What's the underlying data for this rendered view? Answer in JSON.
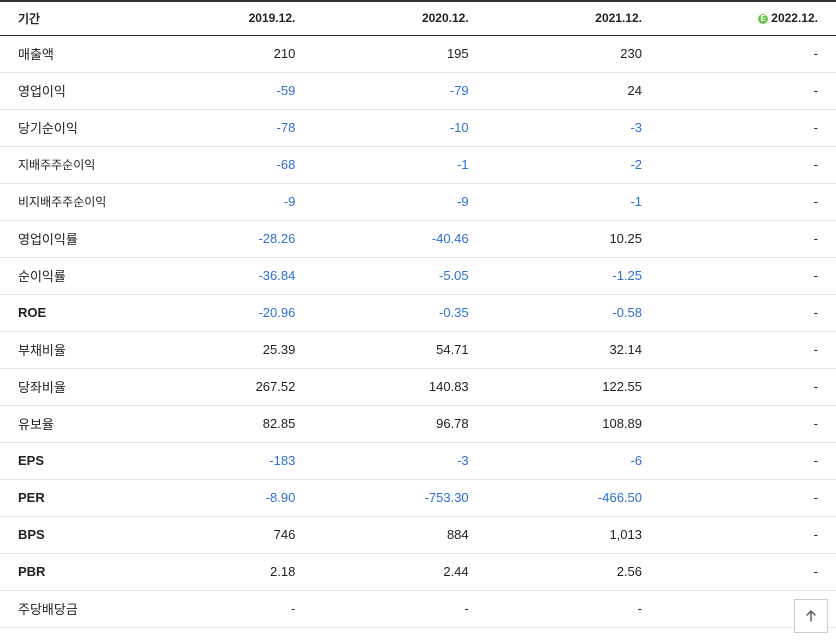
{
  "colors": {
    "negative": "#2f6fd6",
    "text": "#222222",
    "row_border": "#e6e6e6",
    "head_border": "#333333",
    "estimate_badge": "#6fc24a"
  },
  "header": {
    "period_label": "기간",
    "cols": [
      "2019.12.",
      "2020.12.",
      "2021.12.",
      "2022.12."
    ],
    "estimate_col_index": 3,
    "estimate_badge_text": "E"
  },
  "rows": [
    {
      "label": "매출액",
      "sub": false,
      "bold": false,
      "cells": [
        "210",
        "195",
        "230",
        "-"
      ],
      "neg": [
        false,
        false,
        false,
        false
      ]
    },
    {
      "label": "영업이익",
      "sub": false,
      "bold": false,
      "cells": [
        "-59",
        "-79",
        "24",
        "-"
      ],
      "neg": [
        true,
        true,
        false,
        false
      ]
    },
    {
      "label": "당기순이익",
      "sub": false,
      "bold": false,
      "cells": [
        "-78",
        "-10",
        "-3",
        "-"
      ],
      "neg": [
        true,
        true,
        true,
        false
      ]
    },
    {
      "label": "지배주주순이익",
      "sub": true,
      "bold": false,
      "cells": [
        "-68",
        "-1",
        "-2",
        "-"
      ],
      "neg": [
        true,
        true,
        true,
        false
      ]
    },
    {
      "label": "비지배주주순이익",
      "sub": true,
      "bold": false,
      "cells": [
        "-9",
        "-9",
        "-1",
        "-"
      ],
      "neg": [
        true,
        true,
        true,
        false
      ]
    },
    {
      "label": "영업이익률",
      "sub": false,
      "bold": false,
      "cells": [
        "-28.26",
        "-40.46",
        "10.25",
        "-"
      ],
      "neg": [
        true,
        true,
        false,
        false
      ]
    },
    {
      "label": "순이익률",
      "sub": false,
      "bold": false,
      "cells": [
        "-36.84",
        "-5.05",
        "-1.25",
        "-"
      ],
      "neg": [
        true,
        true,
        true,
        false
      ]
    },
    {
      "label": "ROE",
      "sub": false,
      "bold": true,
      "cells": [
        "-20.96",
        "-0.35",
        "-0.58",
        "-"
      ],
      "neg": [
        true,
        true,
        true,
        false
      ]
    },
    {
      "label": "부채비율",
      "sub": false,
      "bold": false,
      "cells": [
        "25.39",
        "54.71",
        "32.14",
        "-"
      ],
      "neg": [
        false,
        false,
        false,
        false
      ]
    },
    {
      "label": "당좌비율",
      "sub": false,
      "bold": false,
      "cells": [
        "267.52",
        "140.83",
        "122.55",
        "-"
      ],
      "neg": [
        false,
        false,
        false,
        false
      ]
    },
    {
      "label": "유보율",
      "sub": false,
      "bold": false,
      "cells": [
        "82.85",
        "96.78",
        "108.89",
        "-"
      ],
      "neg": [
        false,
        false,
        false,
        false
      ]
    },
    {
      "label": "EPS",
      "sub": false,
      "bold": true,
      "cells": [
        "-183",
        "-3",
        "-6",
        "-"
      ],
      "neg": [
        true,
        true,
        true,
        false
      ]
    },
    {
      "label": "PER",
      "sub": false,
      "bold": true,
      "cells": [
        "-8.90",
        "-753.30",
        "-466.50",
        "-"
      ],
      "neg": [
        true,
        true,
        true,
        false
      ]
    },
    {
      "label": "BPS",
      "sub": false,
      "bold": true,
      "cells": [
        "746",
        "884",
        "1,013",
        "-"
      ],
      "neg": [
        false,
        false,
        false,
        false
      ]
    },
    {
      "label": "PBR",
      "sub": false,
      "bold": true,
      "cells": [
        "2.18",
        "2.44",
        "2.56",
        "-"
      ],
      "neg": [
        false,
        false,
        false,
        false
      ]
    },
    {
      "label": "주당배당금",
      "sub": false,
      "bold": false,
      "cells": [
        "-",
        "-",
        "-",
        "-"
      ],
      "neg": [
        false,
        false,
        false,
        false
      ]
    }
  ]
}
